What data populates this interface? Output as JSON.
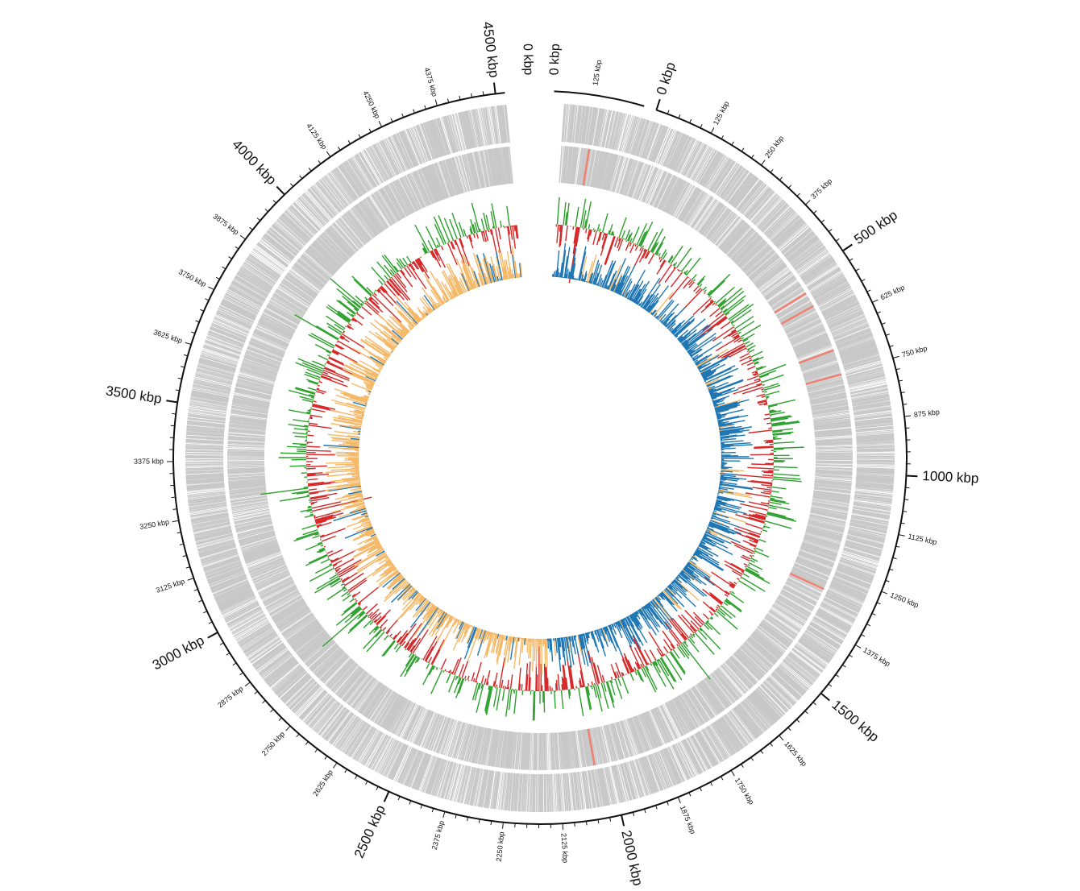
{
  "diagram": {
    "type": "circular-genome-map",
    "genome_length_kbp": 4520,
    "contigs": [
      {
        "id": "contig-large-1",
        "start_kbp": 0,
        "length_kbp": 4520,
        "start_label": "0 kbp",
        "major_ticks": [
          0,
          500,
          1000,
          1500,
          2000,
          2500,
          3000,
          3500,
          4000,
          4500
        ],
        "major_labels": [
          "0 kbp",
          "500 kbp",
          "1000 kbp",
          "1500 kbp",
          "2000 kbp",
          "2500 kbp",
          "3000 kbp",
          "3500 kbp",
          "4000 kbp",
          "4500 kbp"
        ],
        "minor_labels": [
          {
            "kbp": 125,
            "text": "125 kbp"
          },
          {
            "kbp": 250,
            "text": "250 kbp"
          },
          {
            "kbp": 375,
            "text": "375 kbp"
          },
          {
            "kbp": 625,
            "text": "625 kbp"
          },
          {
            "kbp": 750,
            "text": "750 kbp"
          },
          {
            "kbp": 875,
            "text": "875 kbp"
          },
          {
            "kbp": 1125,
            "text": "1125 kbp"
          },
          {
            "kbp": 1250,
            "text": "1250 kbp"
          },
          {
            "kbp": 1375,
            "text": "1375 kbp"
          },
          {
            "kbp": 1625,
            "text": "1625 kbp"
          },
          {
            "kbp": 1750,
            "text": "1750 kbp"
          },
          {
            "kbp": 1875,
            "text": "1875 kbp"
          },
          {
            "kbp": 2125,
            "text": "2125 kbp"
          },
          {
            "kbp": 2250,
            "text": "2250 kbp"
          },
          {
            "kbp": 2375,
            "text": "2375 kbp"
          },
          {
            "kbp": 2625,
            "text": "2625 kbp"
          },
          {
            "kbp": 2750,
            "text": "2750 kbp"
          },
          {
            "kbp": 2875,
            "text": "2875 kbp"
          },
          {
            "kbp": 3125,
            "text": "3125 kbp"
          },
          {
            "kbp": 3250,
            "text": "3250 kbp"
          },
          {
            "kbp": 3375,
            "text": "3375 kbp"
          },
          {
            "kbp": 3625,
            "text": "3625 kbp"
          },
          {
            "kbp": 3750,
            "text": "3750 kbp"
          },
          {
            "kbp": 3875,
            "text": "3875 kbp"
          },
          {
            "kbp": 4125,
            "text": "4125 kbp"
          },
          {
            "kbp": 4250,
            "text": "4250 kbp"
          },
          {
            "kbp": 4375,
            "text": "4375 kbp"
          }
        ]
      },
      {
        "id": "contig-plasmid-1",
        "length_kbp": 180,
        "start_label": "0 kbp",
        "minor_labels": [
          {
            "kbp": 125,
            "text": "125 kbp"
          }
        ]
      },
      {
        "id": "contig-small-1",
        "start_label": "0 kbp"
      }
    ],
    "colors": {
      "backbone": "#111111",
      "feature_gray": "#c8c8c8",
      "feature_highlight": "#f08070",
      "gc_content_positive": "#2ca02c",
      "gc_content_negative": "#d62728",
      "gc_skew_positive": "#1f77b4",
      "gc_skew_negative": "#f5b96a"
    },
    "highlight_features_kbp": [
      65,
      700,
      735,
      850,
      910,
      1430,
      2140
    ]
  }
}
